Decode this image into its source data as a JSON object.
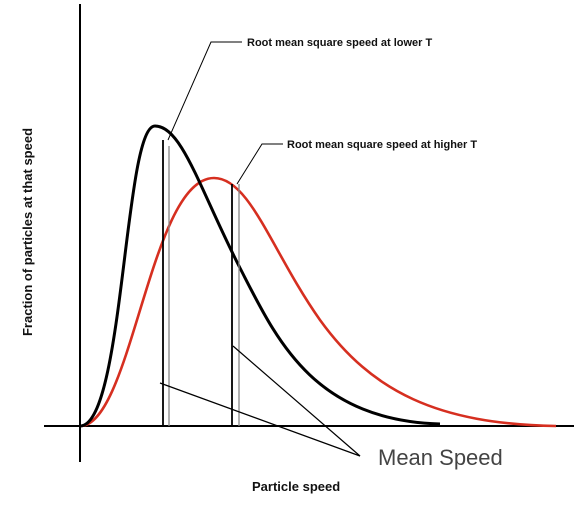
{
  "labels": {
    "rms_lower": "Root mean square speed at lower T",
    "rms_higher": "Root mean square speed at higher T",
    "mean_speed": "Mean Speed",
    "x_axis": "Particle speed",
    "y_axis": "Fraction of particles at that speed"
  },
  "colors": {
    "lower_T_curve": "#000000",
    "higher_T_curve": "#d62f20",
    "axes": "#000000",
    "leader_lines": "#000000",
    "rms_line": "#888888"
  }
}
